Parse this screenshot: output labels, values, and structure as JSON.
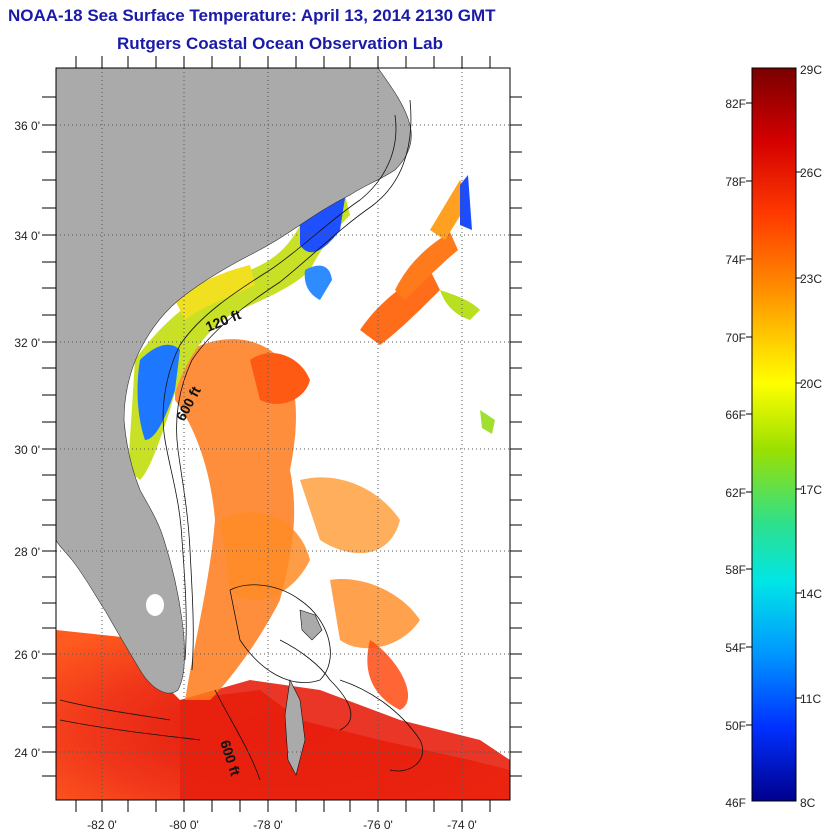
{
  "header": {
    "title": "NOAA-18 Sea Surface Temperature:  April 13, 2014 2130 GMT",
    "subtitle": "Rutgers Coastal Ocean Observation Lab"
  },
  "map": {
    "lat_labels": [
      "36 0'",
      "34 0'",
      "32 0'",
      "30 0'",
      "28 0'",
      "26 0'",
      "24 0'"
    ],
    "lon_labels": [
      "-82 0'",
      "-80 0'",
      "-78 0'",
      "-76 0'",
      "-74 0'"
    ],
    "contour_labels": [
      "120 ft",
      "600 ft",
      "600 ft"
    ],
    "colors": {
      "land": "#aaaaaa",
      "ocean": "#ffffff",
      "grid": "#555555"
    }
  },
  "colorbar": {
    "fahrenheit_labels": [
      "82F",
      "78F",
      "74F",
      "70F",
      "66F",
      "62F",
      "58F",
      "54F",
      "50F",
      "46F"
    ],
    "celsius_labels": [
      "29C",
      "26C",
      "23C",
      "20C",
      "17C",
      "14C",
      "11C",
      "8C"
    ],
    "colors": [
      "#7a0000",
      "#d40000",
      "#ff3a00",
      "#ff8c00",
      "#ffd500",
      "#ffff00",
      "#9be000",
      "#2fe08a",
      "#00e6e6",
      "#0096ff",
      "#0030ff",
      "#00008c"
    ]
  }
}
